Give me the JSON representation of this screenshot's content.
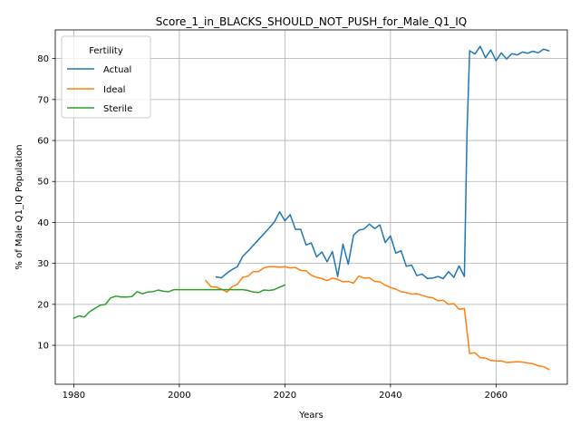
{
  "chart_data": {
    "type": "line",
    "title": "Score_1_in_BLACKS_SHOULD_NOT_PUSH_for_Male_Q1_IQ",
    "xlabel": "Years",
    "ylabel": "% of Male Q1_IQ Population",
    "xlim": [
      1976.5,
      2073.5
    ],
    "ylim": [
      0.5,
      87
    ],
    "xticks": [
      1980,
      2000,
      2020,
      2040,
      2060
    ],
    "yticks": [
      10,
      20,
      30,
      40,
      50,
      60,
      70,
      80
    ],
    "grid": true,
    "legend": {
      "title": "Fertility",
      "position": "top-left"
    },
    "series": [
      {
        "name": "Actual",
        "color": "#1f77b4",
        "x": [
          2007,
          2008,
          2009,
          2010,
          2011,
          2012,
          2013,
          2014,
          2015,
          2016,
          2017,
          2018,
          2019,
          2020,
          2021,
          2022,
          2023,
          2024,
          2025,
          2026,
          2027,
          2028,
          2029,
          2030,
          2031,
          2032,
          2033,
          2034,
          2035,
          2036,
          2037,
          2038,
          2039,
          2040,
          2041,
          2042,
          2043,
          2044,
          2045,
          2046,
          2047,
          2048,
          2049,
          2050,
          2051,
          2052,
          2053,
          2054,
          2054.5,
          2055,
          2056,
          2057,
          2058,
          2059,
          2060,
          2061,
          2062,
          2063,
          2064,
          2065,
          2066,
          2067,
          2068,
          2069,
          2070
        ],
        "values": [
          26.7,
          26.5,
          27.6,
          28.5,
          29.2,
          31.7,
          33.0,
          34.4,
          35.8,
          37.2,
          38.6,
          40.1,
          42.6,
          40.4,
          41.9,
          38.3,
          38.3,
          34.5,
          35.0,
          31.6,
          32.8,
          30.4,
          32.9,
          26.8,
          34.7,
          29.8,
          36.9,
          38.1,
          38.4,
          39.6,
          38.5,
          39.4,
          35.1,
          36.7,
          32.5,
          33.1,
          29.3,
          29.6,
          27.0,
          27.4,
          26.3,
          26.4,
          26.8,
          26.3,
          28.0,
          26.6,
          29.4,
          26.8,
          62.0,
          81.9,
          81.1,
          83.0,
          80.2,
          82.1,
          79.5,
          81.4,
          79.9,
          81.2,
          80.9,
          81.6,
          81.3,
          81.8,
          81.4,
          82.3,
          81.9
        ]
      },
      {
        "name": "Ideal",
        "color": "#ff7f0e",
        "x": [
          2005,
          2006,
          2007,
          2008,
          2009,
          2010,
          2011,
          2012,
          2013,
          2014,
          2015,
          2016,
          2017,
          2018,
          2019,
          2020,
          2021,
          2022,
          2023,
          2024,
          2025,
          2026,
          2027,
          2028,
          2029,
          2030,
          2031,
          2032,
          2033,
          2034,
          2035,
          2036,
          2037,
          2038,
          2039,
          2040,
          2041,
          2042,
          2043,
          2044,
          2045,
          2046,
          2047,
          2048,
          2049,
          2050,
          2051,
          2052,
          2053,
          2054,
          2055,
          2056,
          2057,
          2058,
          2059,
          2060,
          2061,
          2062,
          2063,
          2064,
          2065,
          2066,
          2067,
          2068,
          2069,
          2070
        ],
        "values": [
          25.8,
          24.3,
          24.2,
          23.7,
          23.0,
          24.3,
          24.9,
          26.6,
          26.9,
          28.0,
          28.0,
          28.9,
          29.2,
          29.2,
          29.1,
          29.2,
          28.9,
          29.0,
          28.3,
          28.2,
          27.1,
          26.6,
          26.3,
          25.8,
          26.4,
          26.1,
          25.5,
          25.6,
          25.2,
          26.9,
          26.4,
          26.5,
          25.6,
          25.5,
          24.7,
          24.1,
          23.7,
          23.1,
          22.9,
          22.5,
          22.6,
          22.2,
          21.8,
          21.6,
          20.9,
          21.0,
          20.0,
          20.2,
          18.8,
          19.0,
          8.0,
          8.2,
          7.0,
          6.9,
          6.3,
          6.2,
          6.2,
          5.8,
          5.9,
          6.0,
          5.9,
          5.7,
          5.5,
          5.0,
          4.8,
          4.1
        ]
      },
      {
        "name": "Sterile",
        "color": "#2ca02c",
        "x": [
          1980,
          1981,
          1982,
          1983,
          1984,
          1985,
          1986,
          1987,
          1988,
          1989,
          1990,
          1991,
          1992,
          1993,
          1994,
          1995,
          1996,
          1997,
          1998,
          1999,
          2000,
          2001,
          2002,
          2003,
          2004,
          2005,
          2006,
          2007,
          2008,
          2009,
          2010,
          2011,
          2012,
          2013,
          2014,
          2015,
          2016,
          2017,
          2018,
          2019,
          2020
        ],
        "values": [
          16.6,
          17.2,
          16.9,
          18.2,
          19.0,
          19.8,
          20.0,
          21.6,
          22.0,
          21.8,
          21.8,
          21.9,
          23.1,
          22.6,
          23.0,
          23.1,
          23.5,
          23.2,
          23.1,
          23.6,
          23.6,
          23.6,
          23.6,
          23.6,
          23.6,
          23.6,
          23.6,
          23.6,
          23.6,
          23.6,
          23.6,
          23.6,
          23.6,
          23.4,
          23.0,
          22.9,
          23.5,
          23.4,
          23.6,
          24.2,
          24.7
        ]
      }
    ]
  }
}
